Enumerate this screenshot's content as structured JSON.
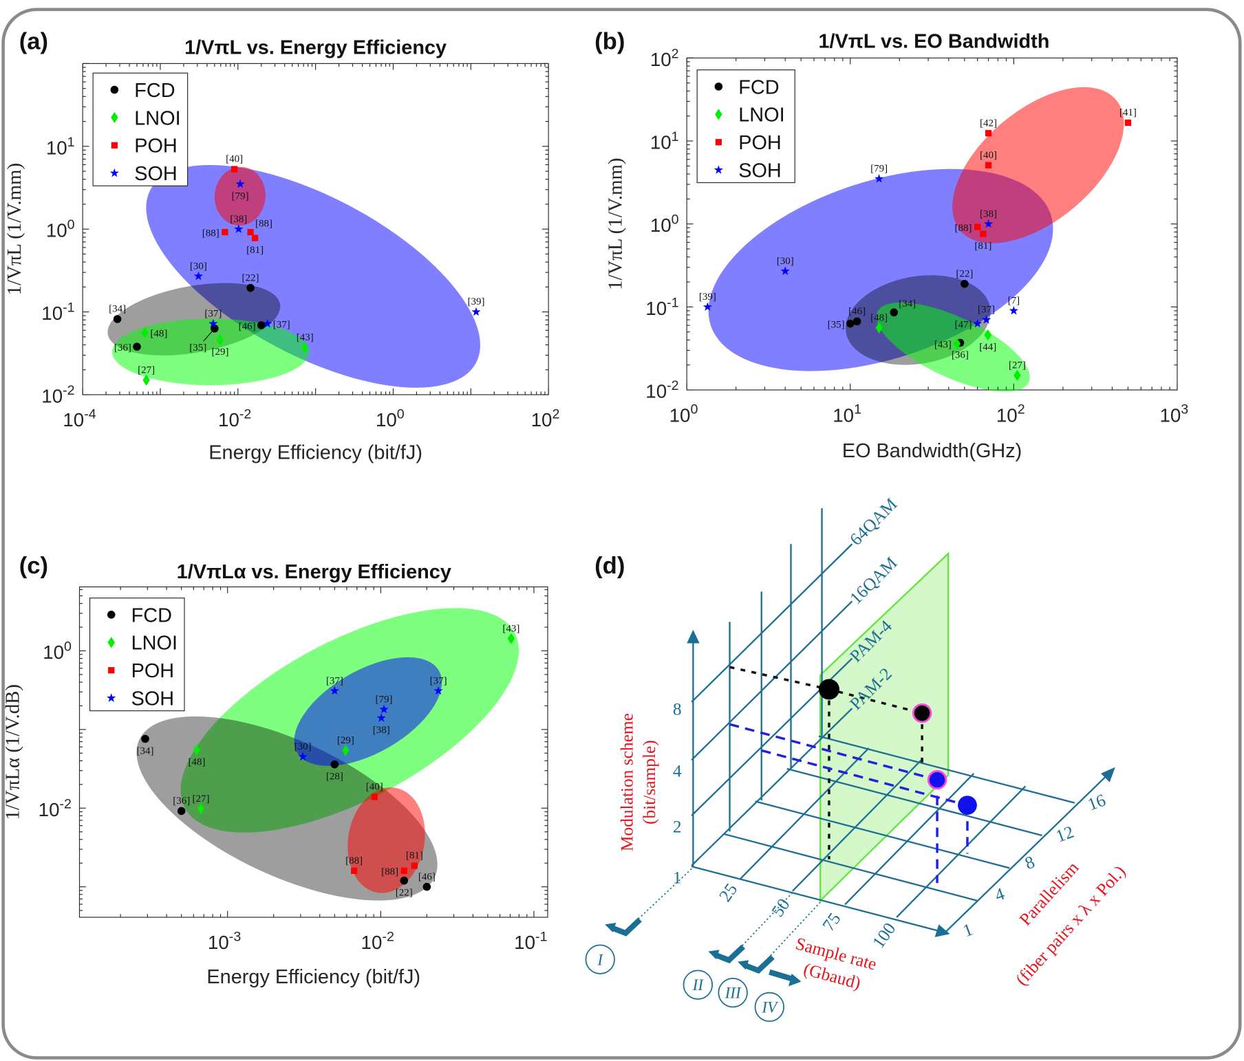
{
  "panels": {
    "a": "(a)",
    "b": "(b)",
    "c": "(c)",
    "d": "(d)"
  },
  "chart_data": [
    {
      "type": "scatter",
      "title": "1/VπL vs. Energy Efficiency",
      "xlabel": "Energy Efficiency (bit/fJ)",
      "ylabel": "1/VπL (1/V.mm)",
      "xscale": "log",
      "yscale": "log",
      "xlim": [
        0.0001,
        100
      ],
      "ylim": [
        0.01,
        100
      ],
      "xticks": [
        "10^-4",
        "10^-2",
        "10^0",
        "10^2"
      ],
      "yticks": [
        "10^-2",
        "10^-1",
        "10^0",
        "10^1"
      ],
      "legend": "top-left",
      "series": [
        {
          "name": "FCD",
          "marker": "circle",
          "color": "#000000",
          "points": [
            {
              "x": 0.00028,
              "y": 0.082,
              "label": "[34]",
              "pos": "a"
            },
            {
              "x": 0.0005,
              "y": 0.038,
              "label": "[36]",
              "pos": "l"
            },
            {
              "x": 0.005,
              "y": 0.063,
              "label": "[35]",
              "pos": "bl"
            },
            {
              "x": 0.02,
              "y": 0.069,
              "label": "[46]",
              "pos": "l"
            },
            {
              "x": 0.0145,
              "y": 0.195,
              "label": "[22]",
              "pos": "a"
            }
          ]
        },
        {
          "name": "LNOI",
          "marker": "diamond",
          "color": "#00ee00",
          "points": [
            {
              "x": 0.00063,
              "y": 0.056,
              "label": "[48]",
              "pos": "r"
            },
            {
              "x": 0.0059,
              "y": 0.046,
              "label": "[29]",
              "pos": "b"
            },
            {
              "x": 0.00066,
              "y": 0.015,
              "label": "[27]",
              "pos": "a"
            },
            {
              "x": 0.073,
              "y": 0.037,
              "label": "[43]",
              "pos": "a"
            }
          ]
        },
        {
          "name": "POH",
          "marker": "square",
          "color": "#ff0000",
          "points": [
            {
              "x": 0.009,
              "y": 5.3,
              "label": "[40]",
              "pos": "a"
            },
            {
              "x": 0.0068,
              "y": 0.92,
              "label": "[88]",
              "pos": "l"
            },
            {
              "x": 0.0145,
              "y": 0.92,
              "label": "[88]",
              "pos": "ar"
            },
            {
              "x": 0.0166,
              "y": 0.78,
              "label": "[81]",
              "pos": "b"
            }
          ]
        },
        {
          "name": "SOH",
          "marker": "star",
          "color": "#0000ff",
          "points": [
            {
              "x": 0.0107,
              "y": 3.5,
              "label": "[79]",
              "pos": "b"
            },
            {
              "x": 0.0102,
              "y": 1.0,
              "label": "[38]",
              "pos": "a"
            },
            {
              "x": 0.0031,
              "y": 0.27,
              "label": "[30]",
              "pos": "a"
            },
            {
              "x": 0.0048,
              "y": 0.072,
              "label": "[37]",
              "pos": "a"
            },
            {
              "x": 0.024,
              "y": 0.072,
              "label": "[37]",
              "pos": "r"
            },
            {
              "x": 11.7,
              "y": 0.1,
              "label": "[39]",
              "pos": "a"
            }
          ]
        }
      ]
    },
    {
      "type": "scatter",
      "title": "1/VπL vs. EO Bandwidth",
      "xlabel": "EO Bandwidth(GHz)",
      "ylabel": "1/VπL (1/V.mm)",
      "xscale": "log",
      "yscale": "log",
      "xlim": [
        1,
        1000
      ],
      "ylim": [
        0.01,
        100
      ],
      "xticks": [
        "10^0",
        "10^1",
        "10^2",
        "10^3"
      ],
      "yticks": [
        "10^-2",
        "10^-1",
        "10^0",
        "10^1",
        "10^2"
      ],
      "legend": "top-left",
      "series": [
        {
          "name": "FCD",
          "marker": "circle",
          "color": "#000000",
          "points": [
            {
              "x": 50,
              "y": 0.19,
              "label": "[22]",
              "pos": "a"
            },
            {
              "x": 18.5,
              "y": 0.086,
              "label": "[34]",
              "pos": "ar"
            },
            {
              "x": 10,
              "y": 0.063,
              "label": "[35]",
              "pos": "l"
            },
            {
              "x": 11,
              "y": 0.067,
              "label": "[46]",
              "pos": "a"
            },
            {
              "x": 47,
              "y": 0.037,
              "label": "[36]",
              "pos": "b"
            }
          ]
        },
        {
          "name": "LNOI",
          "marker": "diamond",
          "color": "#00ee00",
          "points": [
            {
              "x": 15,
              "y": 0.056,
              "label": "[48]",
              "pos": "a"
            },
            {
              "x": 45,
              "y": 0.036,
              "label": "[43]",
              "pos": "l"
            },
            {
              "x": 69.5,
              "y": 0.046,
              "label": "[44]",
              "pos": "b"
            },
            {
              "x": 105,
              "y": 0.015,
              "label": "[27]",
              "pos": "a"
            }
          ]
        },
        {
          "name": "POH",
          "marker": "square",
          "color": "#ff0000",
          "points": [
            {
              "x": 500,
              "y": 16.6,
              "label": "[41]",
              "pos": "a"
            },
            {
              "x": 70,
              "y": 12.4,
              "label": "[42]",
              "pos": "a"
            },
            {
              "x": 70,
              "y": 5.1,
              "label": "[40]",
              "pos": "a"
            },
            {
              "x": 60,
              "y": 0.92,
              "label": "[88]",
              "pos": "l"
            },
            {
              "x": 65,
              "y": 0.76,
              "label": "[81]",
              "pos": "b"
            }
          ]
        },
        {
          "name": "SOH",
          "marker": "star",
          "color": "#0000ff",
          "points": [
            {
              "x": 15,
              "y": 3.5,
              "label": "[79]",
              "pos": "a"
            },
            {
              "x": 70,
              "y": 1.0,
              "label": "[38]",
              "pos": "a"
            },
            {
              "x": 4,
              "y": 0.27,
              "label": "[30]",
              "pos": "a"
            },
            {
              "x": 1.34,
              "y": 0.1,
              "label": "[39]",
              "pos": "a"
            },
            {
              "x": 68,
              "y": 0.07,
              "label": "[37]",
              "pos": "a"
            },
            {
              "x": 60,
              "y": 0.063,
              "label": "[47]",
              "pos": "l"
            },
            {
              "x": 100,
              "y": 0.09,
              "label": "[7]",
              "pos": "a"
            }
          ]
        }
      ]
    },
    {
      "type": "scatter",
      "title": "1/VπLα vs. Energy Efficiency",
      "xlabel": "Energy Efficiency (bit/fJ)",
      "ylabel": "1/VπLα (1/V.dB)",
      "xscale": "log",
      "yscale": "log",
      "xlim": [
        0.000108,
        0.123
      ],
      "ylim": [
        0.00041,
        6.5
      ],
      "xticks": [
        "10^-3",
        "10^-2",
        "10^-1"
      ],
      "yticks": [
        "10^-2",
        "10^0"
      ],
      "legend": "top-left",
      "series": [
        {
          "name": "FCD",
          "marker": "circle",
          "color": "#000000",
          "points": [
            {
              "x": 0.00029,
              "y": 0.076,
              "label": "[34]",
              "pos": "b"
            },
            {
              "x": 0.0005,
              "y": 0.0092,
              "label": "[36]",
              "pos": "a"
            },
            {
              "x": 0.005,
              "y": 0.036,
              "label": "[28]",
              "pos": "b"
            },
            {
              "x": 0.0142,
              "y": 0.0012,
              "label": "[22]",
              "pos": "b"
            },
            {
              "x": 0.02,
              "y": 0.001,
              "label": "[46]",
              "pos": "a"
            }
          ]
        },
        {
          "name": "LNOI",
          "marker": "diamond",
          "color": "#00ee00",
          "points": [
            {
              "x": 0.00063,
              "y": 0.055,
              "label": "[48]",
              "pos": "b"
            },
            {
              "x": 0.00067,
              "y": 0.0098,
              "label": "[27]",
              "pos": "a"
            },
            {
              "x": 0.0059,
              "y": 0.054,
              "label": "[29]",
              "pos": "a"
            },
            {
              "x": 0.071,
              "y": 1.43,
              "label": "[43]",
              "pos": "a"
            }
          ]
        },
        {
          "name": "POH",
          "marker": "square",
          "color": "#ff0000",
          "points": [
            {
              "x": 0.0091,
              "y": 0.0139,
              "label": "[40]",
              "pos": "a"
            },
            {
              "x": 0.0067,
              "y": 0.0016,
              "label": "[88]",
              "pos": "a"
            },
            {
              "x": 0.0142,
              "y": 0.0016,
              "label": "[88]",
              "pos": "l"
            },
            {
              "x": 0.0166,
              "y": 0.00185,
              "label": "[81]",
              "pos": "a"
            }
          ]
        },
        {
          "name": "SOH",
          "marker": "star",
          "color": "#0000ff",
          "points": [
            {
              "x": 0.005,
              "y": 0.31,
              "label": "[37]",
              "pos": "a"
            },
            {
              "x": 0.0238,
              "y": 0.31,
              "label": "[37]",
              "pos": "a"
            },
            {
              "x": 0.0105,
              "y": 0.18,
              "label": "[79]",
              "pos": "a"
            },
            {
              "x": 0.0101,
              "y": 0.14,
              "label": "[38]",
              "pos": "b"
            },
            {
              "x": 0.0031,
              "y": 0.045,
              "label": "[30]",
              "pos": "a"
            }
          ]
        }
      ]
    }
  ],
  "diagram": {
    "y_axis_title": "Modulation scheme",
    "y_axis_unit": "(bit/sample)",
    "y_ticks": [
      "1",
      "2",
      "4",
      "8"
    ],
    "x_axis_title": "Sample rate",
    "x_axis_unit": "(Gbaud)",
    "x_ticks": [
      "25",
      "50",
      "75",
      "100"
    ],
    "z_axis_title": "Parallelism",
    "z_axis_unit": "(fiber pairs x λ x Pol.)",
    "z_ticks": [
      "1",
      "4",
      "8",
      "12",
      "16"
    ],
    "level_labels": [
      "64QAM",
      "16QAM",
      "PAM-4",
      "PAM-2"
    ],
    "paths": [
      "I",
      "II",
      "III",
      "IV"
    ],
    "teal": "#1b6f94",
    "red": "#e8141b",
    "plane_color": "#ccf7c0"
  }
}
